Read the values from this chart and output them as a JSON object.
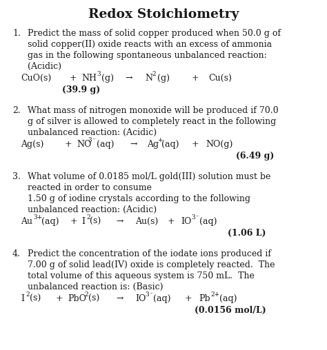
{
  "title": "Redox Stoichiometry",
  "background_color": "#ffffff",
  "text_color": "#1a1a1a",
  "figsize": [
    4.74,
    5.08
  ],
  "dpi": 100,
  "font_body": 9.0,
  "font_title": 13.5
}
